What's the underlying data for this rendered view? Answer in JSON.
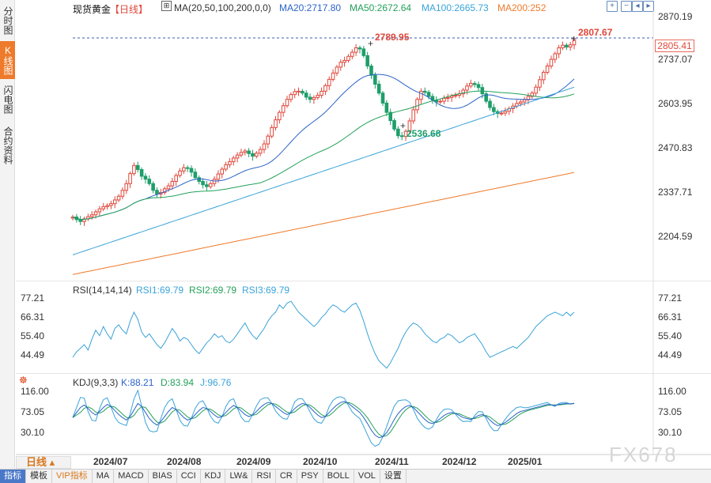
{
  "side_tabs": [
    {
      "label": "分时图",
      "active": false
    },
    {
      "label": "K线图",
      "active": true
    },
    {
      "label": "闪电图",
      "active": false
    },
    {
      "label": "合约资料",
      "active": false
    }
  ],
  "header": {
    "symbol": "现货黄金",
    "period_tag": "【日线】",
    "ma_label": "MA(20,50,100,200,0,0)",
    "ma20": "MA20:2717.80",
    "ma50": "MA50:2672.64",
    "ma100": "MA100:2665.73",
    "ma200": "MA200:252"
  },
  "toolbar_icons": [
    "plus-icon",
    "minus-icon",
    "left-icon",
    "right-icon",
    "expand-icon"
  ],
  "colors": {
    "up": "#e0473b",
    "down": "#1e9e6a",
    "ma20": "#2b63c9",
    "ma50": "#24a05a",
    "ma100": "#3aa3d8",
    "ma200": "#ee7a2b",
    "dashed": "#3a5bb0",
    "rsi": "#3aa3d8",
    "kdj_k": "#2b63c9",
    "kdj_d": "#24a05a",
    "kdj_j": "#3aa3d8"
  },
  "price_axis": [
    "2870.19",
    "2737.07",
    "2603.95",
    "2470.83",
    "2337.71",
    "2204.59"
  ],
  "current_price": "2805.41",
  "annotations": {
    "high_1": "2789.95",
    "high_2": "2807.67",
    "low": "2536.68"
  },
  "rsi": {
    "label": "RSI(14,14,14)",
    "rsi1": "RSI1:69.79",
    "rsi2": "RSI2:69.79",
    "rsi3": "RSI3:69.79",
    "axis": [
      "77.21",
      "66.31",
      "55.40",
      "44.49"
    ]
  },
  "kdj": {
    "label": "KDJ(9,3,3)",
    "k": "K:88.21",
    "d": "D:83.94",
    "j": "J:96.76",
    "axis": [
      "116.00",
      "73.05",
      "30.10"
    ]
  },
  "dates": [
    "2024/07",
    "2024/08",
    "2024/09",
    "2024/10",
    "2024/11",
    "2024/12",
    "2025/01"
  ],
  "period_button": "日线",
  "bottom_tabs": [
    {
      "label": "指标",
      "active": true
    },
    {
      "label": "模板",
      "active": false
    },
    {
      "label": "VIP指标",
      "active": false,
      "vip": true
    },
    {
      "label": "MA",
      "active": false
    },
    {
      "label": "MACD",
      "active": false
    },
    {
      "label": "BIAS",
      "active": false
    },
    {
      "label": "CCI",
      "active": false
    },
    {
      "label": "KDJ",
      "active": false
    },
    {
      "label": "LW&",
      "active": false
    },
    {
      "label": "RSI",
      "active": false
    },
    {
      "label": "CR",
      "active": false
    },
    {
      "label": "PSY",
      "active": false
    },
    {
      "label": "BOLL",
      "active": false
    },
    {
      "label": "VOL",
      "active": false
    },
    {
      "label": "设置",
      "active": false
    }
  ],
  "watermark": "FX678",
  "chart_data": {
    "type": "candlestick",
    "title": "现货黄金【日线】",
    "y_range": [
      2165,
      2885
    ],
    "series_close": [
      2330,
      2323,
      2318,
      2325,
      2331,
      2336,
      2344,
      2352,
      2358,
      2361,
      2366,
      2376,
      2386,
      2402,
      2420,
      2447,
      2469,
      2458,
      2440,
      2432,
      2420,
      2402,
      2392,
      2396,
      2406,
      2414,
      2426,
      2442,
      2454,
      2463,
      2461,
      2451,
      2436,
      2426,
      2417,
      2412,
      2420,
      2432,
      2446,
      2459,
      2471,
      2479,
      2489,
      2497,
      2504,
      2508,
      2501,
      2494,
      2502,
      2512,
      2527,
      2548,
      2571,
      2592,
      2612,
      2630,
      2647,
      2660,
      2668,
      2669,
      2664,
      2653,
      2647,
      2652,
      2658,
      2669,
      2684,
      2701,
      2718,
      2734,
      2747,
      2752,
      2763,
      2774,
      2786,
      2783,
      2765,
      2737,
      2712,
      2688,
      2664,
      2637,
      2612,
      2590,
      2567,
      2549,
      2547,
      2561,
      2589,
      2619,
      2647,
      2669,
      2666,
      2655,
      2645,
      2640,
      2642,
      2650,
      2652,
      2656,
      2658,
      2662,
      2672,
      2683,
      2690,
      2687,
      2679,
      2662,
      2642,
      2625,
      2614,
      2609,
      2610,
      2615,
      2622,
      2629,
      2636,
      2640,
      2646,
      2655,
      2664,
      2680,
      2700,
      2720,
      2737,
      2755,
      2770,
      2786,
      2793,
      2788,
      2794,
      2806
    ],
    "rsi_values": [
      45,
      48,
      50,
      52,
      49,
      55,
      60,
      57,
      62,
      58,
      55,
      61,
      63,
      60,
      58,
      65,
      70,
      66,
      59,
      56,
      58,
      55,
      52,
      50,
      53,
      57,
      61,
      58,
      54,
      56,
      55,
      52,
      49,
      47,
      50,
      53,
      55,
      58,
      56,
      57,
      54,
      53,
      55,
      58,
      61,
      64,
      60,
      57,
      55,
      58,
      61,
      65,
      68,
      70,
      74,
      72,
      75,
      76,
      73,
      70,
      68,
      66,
      64,
      62,
      64,
      67,
      69,
      72,
      74,
      73,
      71,
      70,
      72,
      74,
      75,
      71,
      65,
      58,
      52,
      47,
      43,
      41,
      39,
      42,
      46,
      50,
      55,
      59,
      62,
      64,
      63,
      61,
      58,
      56,
      54,
      53,
      55,
      56,
      58,
      57,
      55,
      53,
      54,
      56,
      57,
      58,
      55,
      52,
      48,
      45,
      46,
      47,
      48,
      49,
      50,
      51,
      50,
      52,
      54,
      56,
      59,
      62,
      64,
      66,
      68,
      69,
      70,
      69,
      68,
      70,
      68,
      70
    ],
    "kdj_k_values": [
      60,
      70,
      80,
      85,
      78,
      70,
      65,
      72,
      80,
      86,
      82,
      74,
      66,
      60,
      55,
      62,
      75,
      88,
      82,
      70,
      58,
      50,
      45,
      52,
      62,
      72,
      80,
      76,
      68,
      60,
      55,
      58,
      66,
      74,
      80,
      78,
      72,
      65,
      60,
      62,
      70,
      78,
      84,
      80,
      73,
      66,
      62,
      65,
      72,
      80,
      86,
      90,
      88,
      82,
      76,
      70,
      66,
      70,
      78,
      84,
      88,
      86,
      80,
      72,
      65,
      60,
      62,
      70,
      78,
      85,
      90,
      92,
      88,
      82,
      76,
      70,
      60,
      48,
      35,
      25,
      20,
      22,
      30,
      42,
      56,
      68,
      76,
      82,
      84,
      80,
      72,
      64,
      56,
      50,
      48,
      52,
      58,
      64,
      68,
      70,
      68,
      64,
      60,
      58,
      56,
      60,
      64,
      66,
      62,
      55,
      48,
      44,
      46,
      50,
      56,
      62,
      68,
      72,
      74,
      76,
      78,
      80,
      82,
      84,
      86,
      85,
      84,
      86,
      87,
      88,
      87,
      88
    ]
  }
}
